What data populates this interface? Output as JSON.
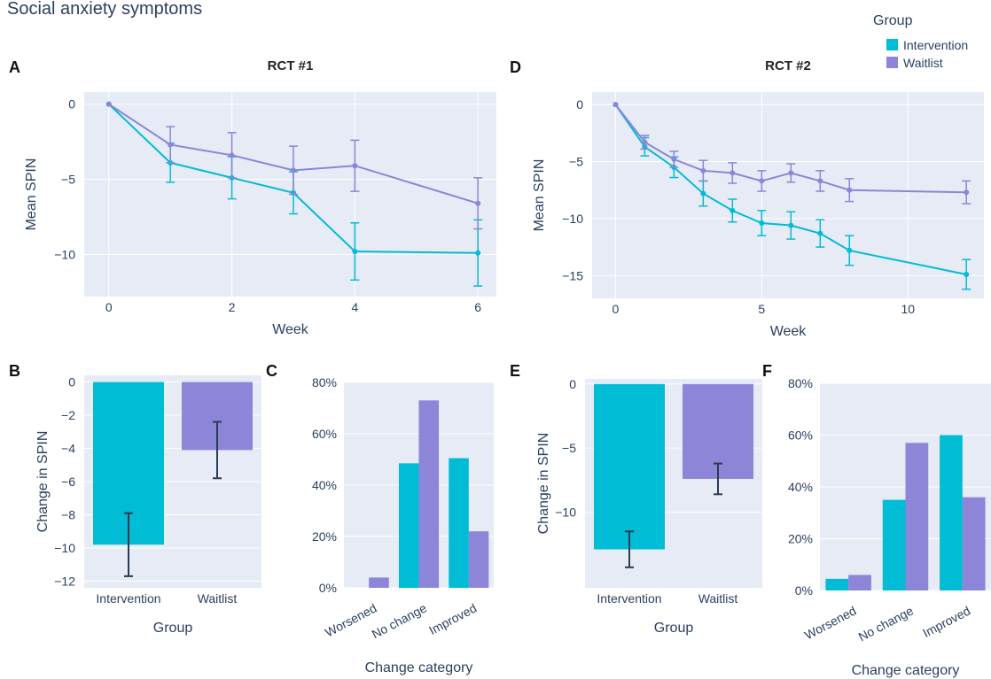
{
  "figure_title": "Social anxiety symptoms",
  "legend": {
    "title": "Group",
    "placement": "top-right",
    "items": [
      {
        "label": "Intervention",
        "color": "#00bcd4"
      },
      {
        "label": "Waitlist",
        "color": "#8c85d8"
      }
    ]
  },
  "colors": {
    "intervention": "#00bcd4",
    "waitlist": "#8c85d8",
    "errorbar_dark": "#2b3a55",
    "plot_bg": "#e6ebf5",
    "grid": "#ffffff"
  },
  "chart_data": [
    {
      "panel": "A",
      "type": "line",
      "title": "RCT #1",
      "xlabel": "Week",
      "ylabel": "Mean SPIN",
      "xlim": [
        -0.4,
        6.3
      ],
      "ylim": [
        -12.8,
        0.8
      ],
      "xticks": [
        0,
        2,
        4,
        6
      ],
      "yticks": [
        0,
        -5,
        -10
      ],
      "ytick_labels": [
        "0",
        "−5",
        "−10"
      ],
      "grid": true,
      "series": [
        {
          "name": "Intervention",
          "x": [
            0,
            1,
            2,
            3,
            4,
            6
          ],
          "y": [
            0,
            -3.9,
            -4.9,
            -5.9,
            -9.8,
            -9.9
          ],
          "err": [
            0,
            1.3,
            1.4,
            1.4,
            1.9,
            2.2
          ]
        },
        {
          "name": "Waitlist",
          "x": [
            0,
            1,
            2,
            3,
            4,
            6
          ],
          "y": [
            0,
            -2.7,
            -3.4,
            -4.4,
            -4.1,
            -6.6
          ],
          "err": [
            0,
            1.2,
            1.5,
            1.6,
            1.7,
            1.7
          ]
        }
      ]
    },
    {
      "panel": "D",
      "type": "line",
      "title": "RCT #2",
      "xlabel": "Week",
      "ylabel": "Mean SPIN",
      "xlim": [
        -0.8,
        12.6
      ],
      "ylim": [
        -17,
        1.1
      ],
      "xticks": [
        0,
        5,
        10
      ],
      "yticks": [
        0,
        -5,
        -10,
        -15
      ],
      "ytick_labels": [
        "0",
        "−5",
        "−10",
        "−15"
      ],
      "grid": true,
      "series": [
        {
          "name": "Intervention",
          "x": [
            0,
            1,
            2,
            3,
            4,
            5,
            6,
            7,
            8,
            12
          ],
          "y": [
            0,
            -3.7,
            -5.5,
            -7.8,
            -9.3,
            -10.4,
            -10.6,
            -11.3,
            -12.8,
            -14.9
          ],
          "err": [
            0,
            0.8,
            0.9,
            1.1,
            1.0,
            1.1,
            1.2,
            1.2,
            1.3,
            1.3
          ]
        },
        {
          "name": "Waitlist",
          "x": [
            0,
            1,
            2,
            3,
            4,
            5,
            6,
            7,
            8,
            12
          ],
          "y": [
            0,
            -3.3,
            -4.8,
            -5.8,
            -6.0,
            -6.7,
            -6.0,
            -6.7,
            -7.5,
            -7.7
          ],
          "err": [
            0,
            0.6,
            0.7,
            0.9,
            0.9,
            0.9,
            0.8,
            0.9,
            1.0,
            1.0
          ]
        }
      ]
    },
    {
      "panel": "B",
      "type": "bar",
      "xlabel": "Group",
      "ylabel": "Change in SPIN",
      "categories": [
        "Intervention",
        "Waitlist"
      ],
      "ylim": [
        -12.4,
        0.4
      ],
      "yticks": [
        0,
        -2,
        -4,
        -6,
        -8,
        -10,
        -12
      ],
      "ytick_labels": [
        "0",
        "−2",
        "−4",
        "−6",
        "−8",
        "−10",
        "−12"
      ],
      "values": [
        -9.8,
        -4.1
      ],
      "err": [
        1.9,
        1.7
      ],
      "grid": true
    },
    {
      "panel": "C",
      "type": "bar",
      "xlabel": "Change category",
      "ylabel": "",
      "categories": [
        "Worsened",
        "No change",
        "Improved"
      ],
      "ylim": [
        0,
        80
      ],
      "yticks": [
        0,
        20,
        40,
        60,
        80
      ],
      "ytick_labels": [
        "0%",
        "20%",
        "40%",
        "60%",
        "80%"
      ],
      "series": [
        {
          "name": "Intervention",
          "values": [
            0,
            48.5,
            50.5
          ]
        },
        {
          "name": "Waitlist",
          "values": [
            4,
            73,
            22
          ]
        }
      ],
      "grid": true
    },
    {
      "panel": "E",
      "type": "bar",
      "xlabel": "Group",
      "ylabel": "Change in SPIN",
      "categories": [
        "Intervention",
        "Waitlist"
      ],
      "ylim": [
        -15.9,
        0.4
      ],
      "yticks": [
        0,
        -5,
        -10
      ],
      "ytick_labels": [
        "0",
        "−5",
        "−10"
      ],
      "values": [
        -12.9,
        -7.4
      ],
      "err": [
        1.4,
        1.2
      ],
      "grid": true
    },
    {
      "panel": "F",
      "type": "bar",
      "xlabel": "Change category",
      "ylabel": "",
      "categories": [
        "Worsened",
        "No change",
        "Improved"
      ],
      "ylim": [
        0,
        80
      ],
      "yticks": [
        0,
        20,
        40,
        60,
        80
      ],
      "ytick_labels": [
        "0%",
        "20%",
        "40%",
        "60%",
        "80%"
      ],
      "series": [
        {
          "name": "Intervention",
          "values": [
            4.5,
            35,
            60
          ]
        },
        {
          "name": "Waitlist",
          "values": [
            6,
            57,
            36
          ]
        }
      ],
      "grid": true
    }
  ]
}
